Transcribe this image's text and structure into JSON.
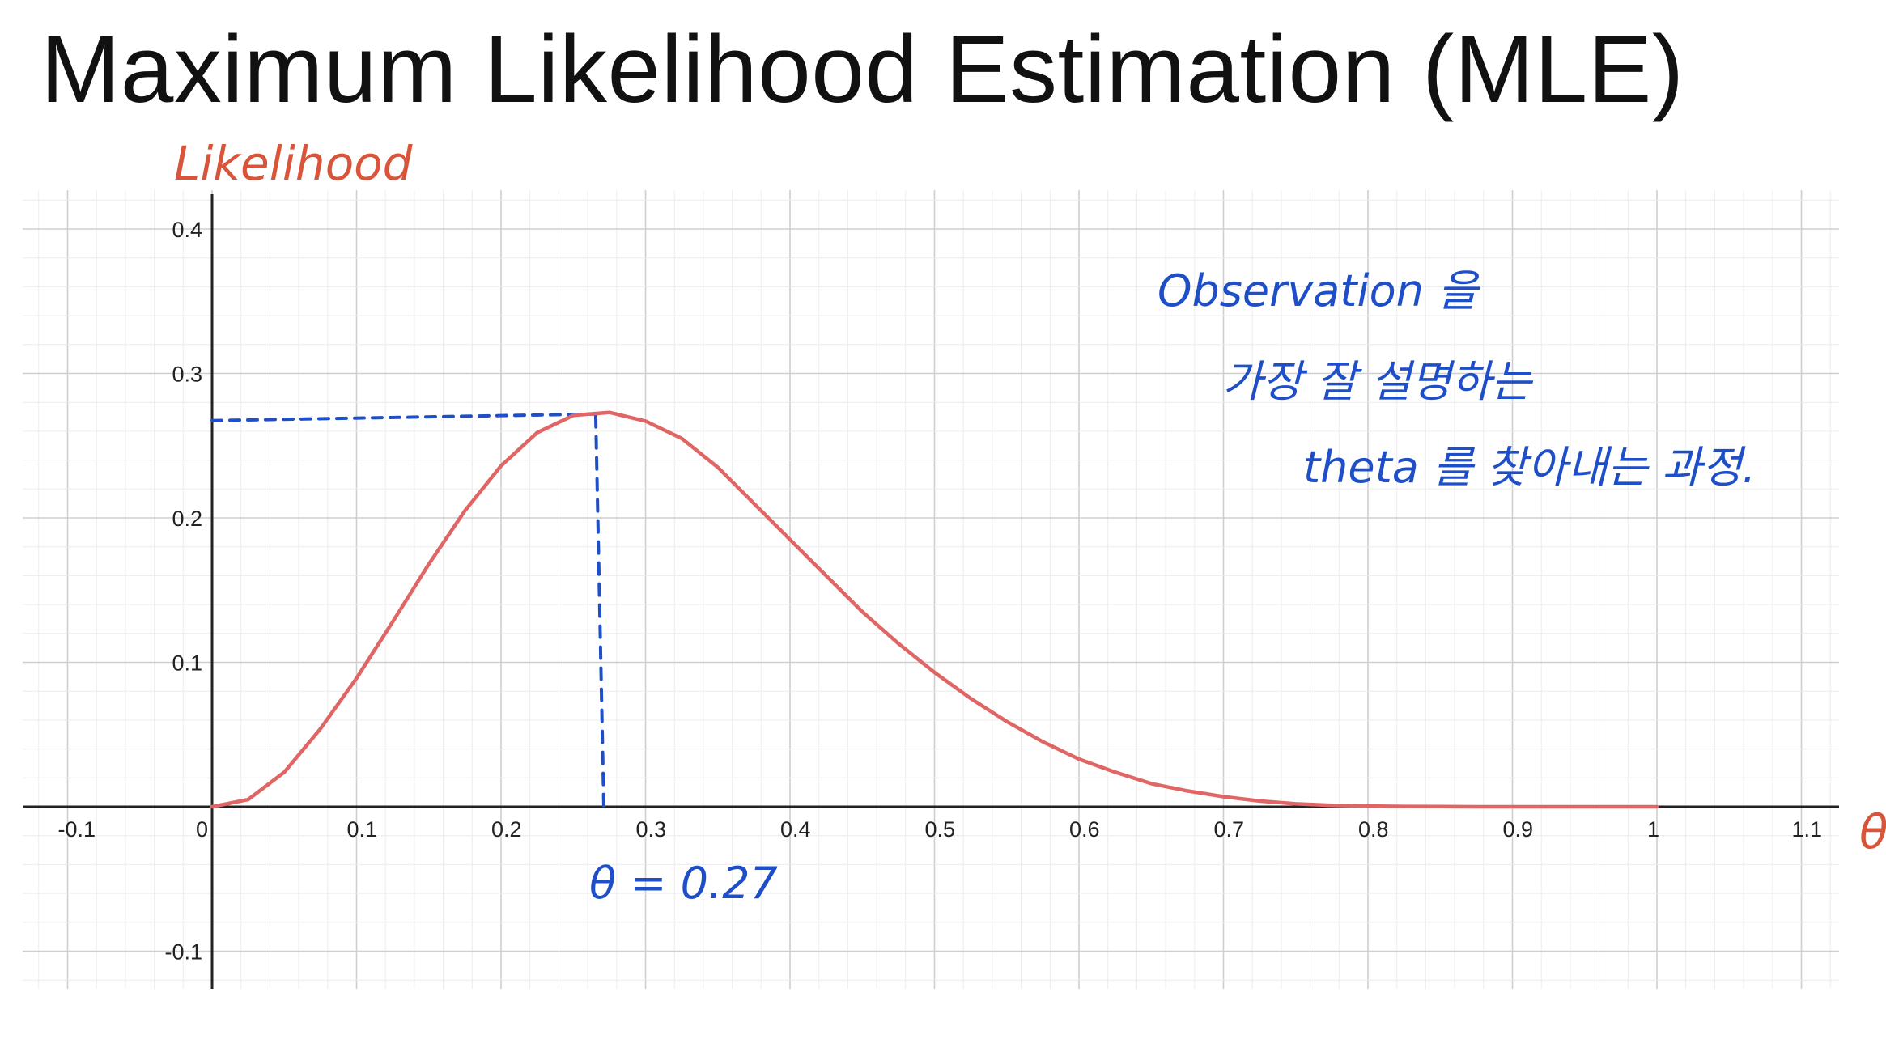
{
  "slide": {
    "title": "Maximum Likelihood Estimation (MLE)"
  },
  "chart_data": {
    "type": "line",
    "title": "",
    "xlabel": "θ",
    "ylabel": "Likelihood",
    "xlim": [
      -0.1,
      1.1
    ],
    "ylim": [
      -0.1,
      0.4
    ],
    "grid": true,
    "x_ticks": [
      "-0.1",
      "0",
      "0.1",
      "0.2",
      "0.3",
      "0.4",
      "0.5",
      "0.6",
      "0.7",
      "0.8",
      "0.9",
      "1",
      "1.1"
    ],
    "x_tick_values": [
      -0.1,
      0,
      0.1,
      0.2,
      0.3,
      0.4,
      0.5,
      0.6,
      0.7,
      0.8,
      0.9,
      1.0,
      1.1
    ],
    "y_ticks": [
      "0.4",
      "0.3",
      "0.2",
      "0.1",
      "-0.1"
    ],
    "y_tick_values": [
      0.4,
      0.3,
      0.2,
      0.1,
      -0.1
    ],
    "series": [
      {
        "color": "#e06666",
        "x": [
          0,
          0.025,
          0.05,
          0.075,
          0.1,
          0.125,
          0.15,
          0.175,
          0.2,
          0.225,
          0.25,
          0.275,
          0.3,
          0.325,
          0.35,
          0.375,
          0.4,
          0.425,
          0.45,
          0.475,
          0.5,
          0.525,
          0.55,
          0.575,
          0.6,
          0.625,
          0.65,
          0.675,
          0.7,
          0.725,
          0.75,
          0.775,
          0.8,
          0.825,
          0.85,
          0.875,
          0.9,
          0.925,
          0.95,
          0.975,
          1.0
        ],
        "y": [
          0,
          0.005,
          0.024,
          0.054,
          0.089,
          0.128,
          0.168,
          0.205,
          0.236,
          0.259,
          0.271,
          0.273,
          0.267,
          0.255,
          0.235,
          0.21,
          0.185,
          0.16,
          0.135,
          0.113,
          0.093,
          0.075,
          0.059,
          0.045,
          0.033,
          0.024,
          0.016,
          0.011,
          0.007,
          0.004,
          0.002,
          0.001,
          0.0005,
          0.0002,
          0.0001,
          0,
          0,
          0,
          0,
          0,
          0
        ]
      }
    ],
    "peak": {
      "x": 0.27,
      "y": 0.273
    },
    "annotations": {
      "peak_label": "θ = 0.27",
      "note_line1": "Observation 을",
      "note_line2": "가장 잘 설명하는",
      "note_line3": "theta 를 찾아내는 과정."
    },
    "colors": {
      "curve": "#e06666",
      "annotation_blue": "#1f4fc8",
      "annotation_red": "#d9553a",
      "grid_major": "#cfcfcf",
      "grid_minor": "#ececec"
    }
  }
}
